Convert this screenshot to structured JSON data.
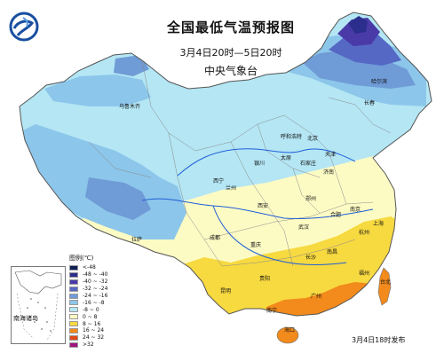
{
  "header": {
    "title": "全国最低气温预报图",
    "date_range": "3月4日20时—5日20时",
    "organization": "中央气象台"
  },
  "legend": {
    "title": "图例(℃)",
    "entries": [
      {
        "label": "<-48",
        "color": "#0e1f55"
      },
      {
        "label": "-48 ~ -40",
        "color": "#2b2e8c"
      },
      {
        "label": "-40 ~ -32",
        "color": "#4a3aa8"
      },
      {
        "label": "-32 ~ -24",
        "color": "#5568c4"
      },
      {
        "label": "-24 ~ -16",
        "color": "#6f9bd6"
      },
      {
        "label": "-16 ~ -8",
        "color": "#8cc6ea"
      },
      {
        "label": "-8 ~ 0",
        "color": "#b4e6f4"
      },
      {
        "label": "0 ~ 8",
        "color": "#fdfbc4"
      },
      {
        "label": "8 ~ 16",
        "color": "#f7d940"
      },
      {
        "label": "16 ~ 24",
        "color": "#f28a1c"
      },
      {
        "label": "24 ~ 32",
        "color": "#e04a16"
      },
      {
        "label": ">32",
        "color": "#a0147c"
      }
    ]
  },
  "inset": {
    "label": "南海诸岛"
  },
  "issue_note": "3月4日18时发布",
  "cities": [
    "哈尔滨",
    "长春",
    "乌鲁木齐",
    "呼和浩特",
    "北京",
    "天津",
    "石家庄",
    "太原",
    "济南",
    "银川",
    "西宁",
    "兰州",
    "郑州",
    "西安",
    "合肥",
    "南京",
    "上海",
    "武汉",
    "杭州",
    "拉萨",
    "成都",
    "重庆",
    "长沙",
    "南昌",
    "贵阳",
    "昆明",
    "福州",
    "广州",
    "南宁",
    "台北",
    "海口"
  ]
}
